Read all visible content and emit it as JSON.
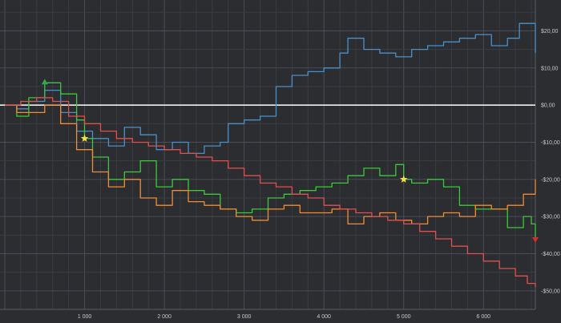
{
  "chart_data": {
    "type": "line",
    "xlabel": "",
    "ylabel": "",
    "xlim": [
      0,
      6650
    ],
    "ylim": [
      -55,
      27
    ],
    "x_ticks": [
      {
        "value": 1000,
        "label": "1 000"
      },
      {
        "value": 2000,
        "label": "2 000"
      },
      {
        "value": 3000,
        "label": "3 000"
      },
      {
        "value": 4000,
        "label": "4 000"
      },
      {
        "value": 5000,
        "label": "5 000"
      },
      {
        "value": 6000,
        "label": "6 000"
      }
    ],
    "y_ticks": [
      {
        "value": 20,
        "label": "$20,00"
      },
      {
        "value": 10,
        "label": "$10,00"
      },
      {
        "value": 0,
        "label": "$0,00"
      },
      {
        "value": -10,
        "label": "-$10,00"
      },
      {
        "value": -20,
        "label": "-$20,00"
      },
      {
        "value": -30,
        "label": "-$30,00"
      },
      {
        "value": -40,
        "label": "-$40,00"
      },
      {
        "value": -50,
        "label": "-$50,00"
      }
    ],
    "grid": true,
    "zero_line": {
      "y": 0,
      "color": "#ffffff"
    },
    "series": [
      {
        "color": "#4a90c8",
        "x": [
          0,
          150,
          300,
          500,
          700,
          900,
          1100,
          1300,
          1500,
          1700,
          1900,
          2100,
          2300,
          2500,
          2700,
          2800,
          3000,
          3200,
          3400,
          3600,
          3800,
          4000,
          4200,
          4300,
          4500,
          4700,
          4900,
          5100,
          5300,
          5500,
          5700,
          5900,
          6100,
          6300,
          6450,
          6600,
          6650
        ],
        "y": [
          0,
          -1,
          1,
          4,
          -2,
          -7,
          -9,
          -11,
          -6,
          -8,
          -12,
          -10,
          -13,
          -11,
          -10,
          -5,
          -4,
          -3,
          5,
          8,
          9,
          10,
          14,
          18,
          15,
          14,
          13,
          15,
          16,
          17,
          18,
          19,
          16,
          18,
          22,
          22,
          14
        ]
      },
      {
        "color": "#3cc83c",
        "x": [
          0,
          150,
          300,
          500,
          600,
          700,
          900,
          1000,
          1100,
          1300,
          1500,
          1700,
          1900,
          2100,
          2300,
          2500,
          2700,
          2900,
          3100,
          3300,
          3500,
          3700,
          3900,
          4100,
          4300,
          4500,
          4700,
          4900,
          5000,
          5100,
          5300,
          5500,
          5700,
          5900,
          6100,
          6300,
          6500,
          6600,
          6650
        ],
        "y": [
          0,
          -3,
          2,
          6,
          6,
          3,
          -4,
          -9,
          -14,
          -20,
          -18,
          -15,
          -22,
          -20,
          -23,
          -24,
          -28,
          -29,
          -28,
          -25,
          -24,
          -23,
          -22,
          -21,
          -19,
          -17,
          -19,
          -16,
          -20,
          -21,
          -20,
          -22,
          -27,
          -28,
          -28,
          -33,
          -30,
          -32,
          -36
        ]
      },
      {
        "color": "#f08c32",
        "x": [
          0,
          150,
          300,
          500,
          700,
          900,
          1100,
          1300,
          1500,
          1700,
          1900,
          2100,
          2300,
          2500,
          2700,
          2900,
          3100,
          3300,
          3500,
          3700,
          3900,
          4100,
          4300,
          4500,
          4700,
          4900,
          5100,
          5300,
          5500,
          5700,
          5900,
          6100,
          6300,
          6500,
          6650
        ],
        "y": [
          0,
          -2,
          -2,
          0,
          -5,
          -12,
          -18,
          -22,
          -20,
          -25,
          -27,
          -23,
          -26,
          -27,
          -28,
          -30,
          -31,
          -28,
          -27,
          -29,
          -29,
          -28,
          -32,
          -30,
          -29,
          -31,
          -32,
          -30,
          -29,
          -30,
          -27,
          -28,
          -27,
          -24,
          -20
        ]
      },
      {
        "color": "#e05050",
        "x": [
          0,
          200,
          400,
          600,
          800,
          1000,
          1200,
          1400,
          1600,
          1800,
          2000,
          2200,
          2400,
          2600,
          2800,
          3000,
          3200,
          3400,
          3600,
          3800,
          4000,
          4200,
          4400,
          4600,
          4800,
          5000,
          5200,
          5400,
          5600,
          5800,
          6000,
          6200,
          6400,
          6550,
          6650
        ],
        "y": [
          0,
          1,
          2,
          1,
          -3,
          -5,
          -7,
          -9,
          -10,
          -11,
          -12,
          -13,
          -14,
          -15,
          -17,
          -19,
          -21,
          -22,
          -24,
          -25,
          -27,
          -28,
          -29,
          -30,
          -31,
          -32,
          -34,
          -36,
          -38,
          -40,
          -42,
          -44,
          -46,
          -48,
          -49
        ]
      }
    ],
    "markers": [
      {
        "x": 500,
        "y": 6,
        "color": "#2fa84f",
        "shape": "triangle-up"
      },
      {
        "x": 1000,
        "y": -9,
        "color": "#f5e04a",
        "shape": "star"
      },
      {
        "x": 5000,
        "y": -20,
        "color": "#f5e04a",
        "shape": "star"
      },
      {
        "x": 6650,
        "y": -36,
        "color": "#d03030",
        "shape": "triangle-down"
      }
    ]
  }
}
